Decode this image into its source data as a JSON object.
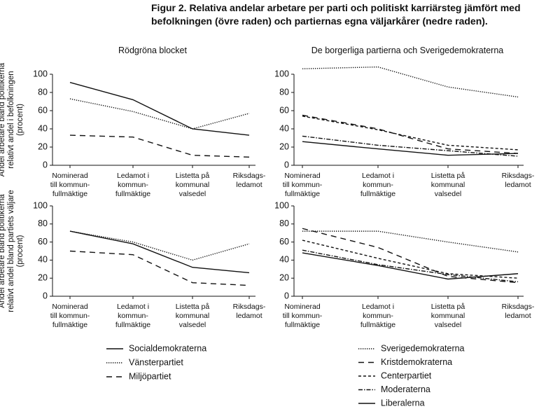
{
  "title": "Figur 2.  Relativa andelar arbetare per parti och politiskt karriärsteg jämfört med befolkningen (övre raden) och partiernas egna väljarkårer (nedre raden).",
  "chart_data": [
    {
      "type": "line",
      "title": "Rödgröna blocket",
      "ylabel": "Andel arbetare bland politikerna\nrelativt andel i befolkningen\n(procent)",
      "categories": [
        "Nominerad\ntill kommun-\nfullmäktige",
        "Ledamot i\nkommun-\nfullmäktige",
        "Listetta på\nkommunal\nvalsedel",
        "Riksdags-\nledamot"
      ],
      "ylim": [
        0,
        100
      ],
      "yticks": [
        0,
        20,
        40,
        60,
        80,
        100
      ],
      "series": [
        {
          "name": "Socialdemokraterna",
          "color": "#111111",
          "dash": "none",
          "values": [
            91,
            72,
            40,
            33
          ]
        },
        {
          "name": "Vänsterpartiet",
          "color": "#111111",
          "dash": "1.3 1.7",
          "values": [
            73,
            59,
            40,
            57
          ]
        },
        {
          "name": "Miljöpartiet",
          "color": "#111111",
          "dash": "8 6",
          "values": [
            33,
            31,
            11,
            9
          ]
        }
      ]
    },
    {
      "type": "line",
      "title": "De borgerliga partierna och Sverigedemokraterna",
      "categories": [
        "Nominerad\ntill kommun-\nfullmäktige",
        "Ledamot i\nkommun-\nfullmäktige",
        "Listetta på\nkommunal\nvalsedel",
        "Riksdags-\nledamot"
      ],
      "ylim": [
        0,
        100
      ],
      "yticks": [
        0,
        20,
        40,
        60,
        80,
        100
      ],
      "series": [
        {
          "name": "Sverigedemokraterna",
          "color": "#111111",
          "dash": "1.3 1.7",
          "values": [
            106,
            108,
            86,
            75
          ]
        },
        {
          "name": "Kristdemokraterna",
          "color": "#111111",
          "dash": "8 6",
          "values": [
            55,
            40,
            18,
            13
          ]
        },
        {
          "name": "Centerpartiet",
          "color": "#111111",
          "dash": "4 3",
          "values": [
            54,
            39,
            22,
            17
          ]
        },
        {
          "name": "Moderaterna",
          "color": "#111111",
          "dash": "6 2 1.5 2",
          "values": [
            32,
            22,
            16,
            10
          ]
        },
        {
          "name": "Liberalerna",
          "color": "#111111",
          "dash": "none",
          "values": [
            26,
            18,
            11,
            13
          ]
        }
      ]
    },
    {
      "type": "line",
      "ylabel": "Andel arbetare bland politikerna\nrelativt andel bland partiets väljare\n(procent)",
      "categories": [
        "Nominerad\ntill kommun-\nfullmäktige",
        "Ledamot i\nkommun-\nfullmäktige",
        "Listetta på\nkommunal\nvalsedel",
        "Riksdags-\nledamot"
      ],
      "ylim": [
        0,
        100
      ],
      "yticks": [
        0,
        20,
        40,
        60,
        80,
        100
      ],
      "series": [
        {
          "color": "#111111",
          "dash": "none",
          "values": [
            72,
            58,
            32,
            26
          ]
        },
        {
          "color": "#111111",
          "dash": "1.3 1.7",
          "values": [
            72,
            60,
            40,
            58
          ]
        },
        {
          "color": "#111111",
          "dash": "8 6",
          "values": [
            50,
            46,
            15,
            12
          ]
        }
      ]
    },
    {
      "type": "line",
      "categories": [
        "Nominerad\ntill kommun-\nfullmäktige",
        "Ledamot i\nkommun-\nfullmäktige",
        "Listetta på\nkommunal\nvalsedel",
        "Riksdags-\nledamot"
      ],
      "ylim": [
        0,
        100
      ],
      "yticks": [
        0,
        20,
        40,
        60,
        80,
        100
      ],
      "series": [
        {
          "color": "#111111",
          "dash": "1.3 1.7",
          "values": [
            72,
            72,
            60,
            49
          ]
        },
        {
          "color": "#111111",
          "dash": "8 6",
          "values": [
            75,
            54,
            22,
            15
          ]
        },
        {
          "color": "#111111",
          "dash": "4 3",
          "values": [
            62,
            42,
            25,
            20
          ]
        },
        {
          "color": "#111111",
          "dash": "6 2 1.5 2",
          "values": [
            51,
            35,
            24,
            16
          ]
        },
        {
          "color": "#111111",
          "dash": "none",
          "values": [
            48,
            34,
            19,
            25
          ]
        }
      ]
    }
  ]
}
